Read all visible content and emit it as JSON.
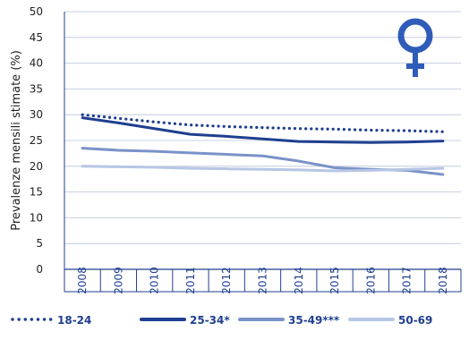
{
  "chart_data": {
    "type": "line",
    "ylabel": "Prevalenze mensili stimate  (%)",
    "ylim": [
      0,
      50
    ],
    "yticks": [
      0,
      5,
      10,
      15,
      20,
      25,
      30,
      35,
      40,
      45,
      50
    ],
    "x": [
      "2008",
      "2009",
      "2010",
      "2011",
      "2012",
      "2013",
      "2014",
      "2015",
      "2016",
      "2017",
      "2018"
    ],
    "grid": true,
    "legend_position": "bottom",
    "symbol": "female",
    "series": [
      {
        "name": "18-24",
        "color": "#1f3f8f",
        "style": "dotted",
        "values": [
          30.0,
          29.3,
          28.6,
          28.0,
          27.7,
          27.5,
          27.3,
          27.2,
          27.0,
          26.9,
          26.7
        ]
      },
      {
        "name": "25-34*",
        "color": "#1f3f8f",
        "style": "solid",
        "values": [
          29.4,
          28.4,
          27.3,
          26.2,
          25.8,
          25.3,
          24.8,
          24.7,
          24.6,
          24.7,
          24.9
        ]
      },
      {
        "name": "35-49***",
        "color": "#7a92c9",
        "style": "solid",
        "values": [
          23.5,
          23.1,
          22.9,
          22.6,
          22.3,
          22.0,
          21.0,
          19.7,
          19.4,
          19.2,
          18.4
        ]
      },
      {
        "name": "50-69",
        "color": "#b7c6e4",
        "style": "solid",
        "values": [
          20.0,
          19.9,
          19.8,
          19.6,
          19.5,
          19.4,
          19.3,
          19.1,
          19.2,
          19.4,
          19.6
        ]
      }
    ]
  }
}
